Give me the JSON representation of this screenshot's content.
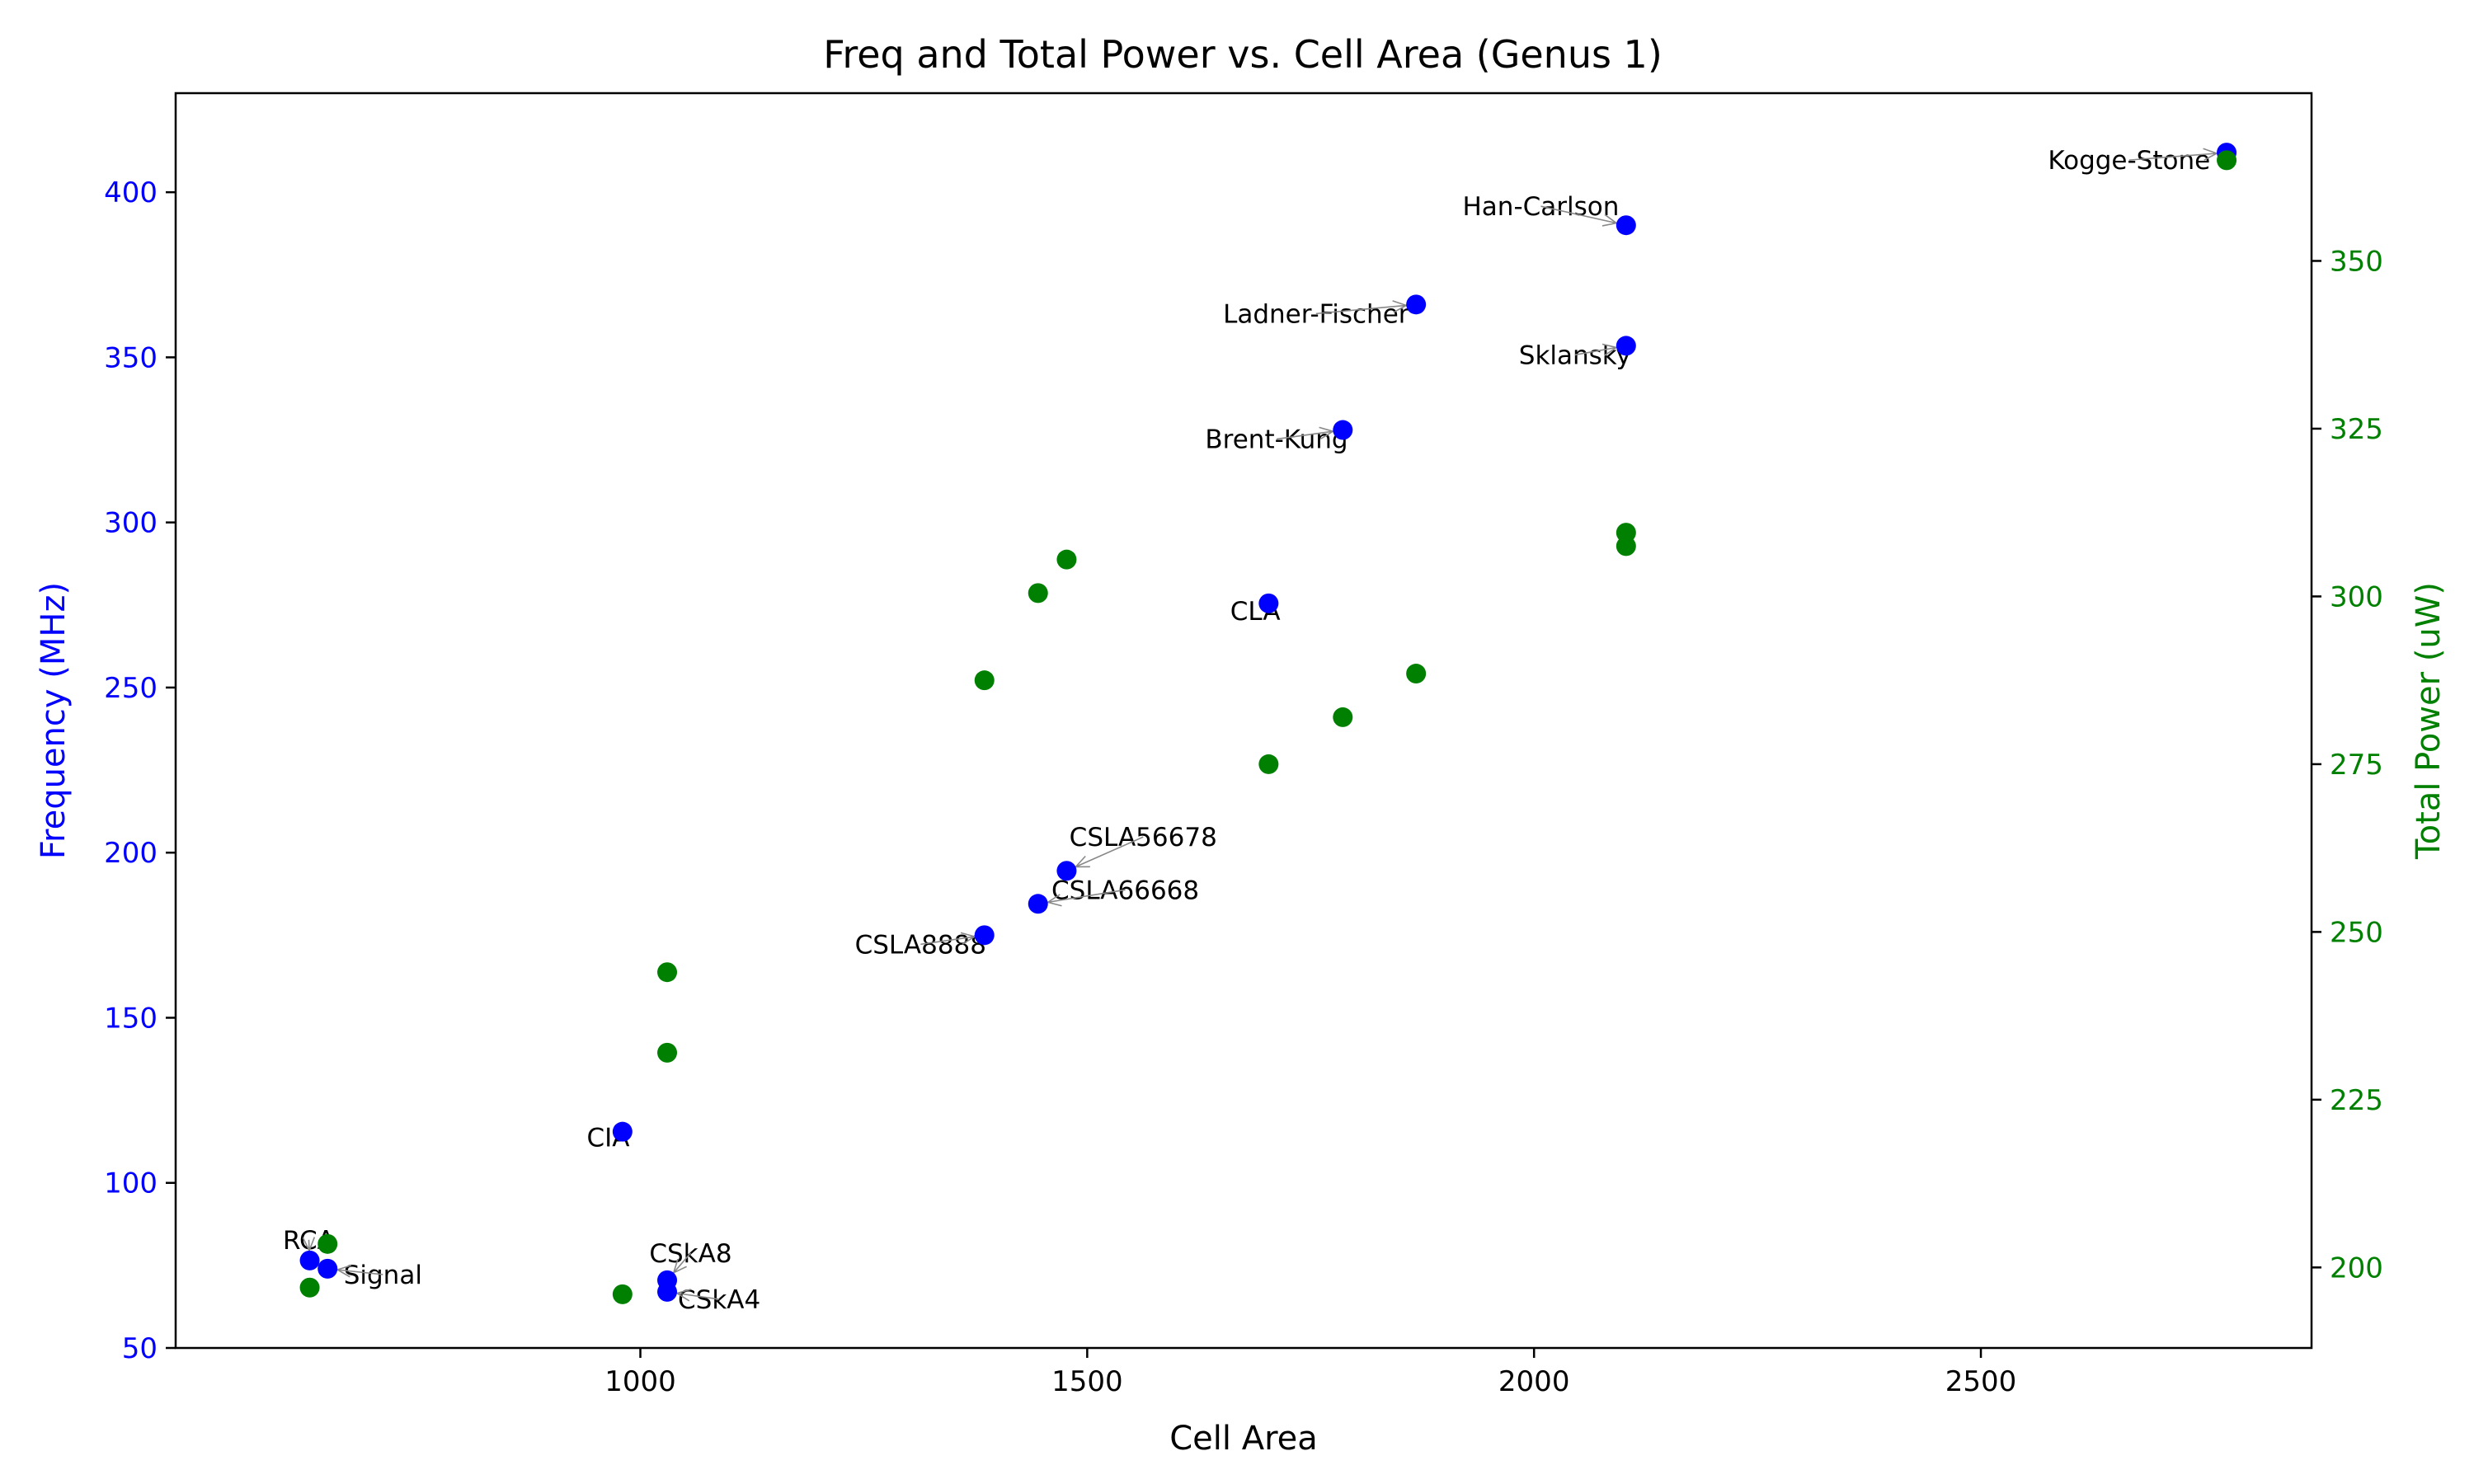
{
  "chart_data": {
    "type": "scatter",
    "title": "Freq and Total Power vs. Cell Area (Genus 1)",
    "xlabel": "Cell Area",
    "ylabel": "Frequency (MHz)",
    "y2label": "Total Power (uW)",
    "xlim": [
      480,
      2870
    ],
    "ylim": [
      50,
      430
    ],
    "y2lim": [
      188,
      375
    ],
    "xticks": [
      1000,
      1500,
      2000,
      2500
    ],
    "yticks": [
      50,
      100,
      150,
      200,
      250,
      300,
      350,
      400
    ],
    "y2ticks": [
      200,
      225,
      250,
      275,
      300,
      325,
      350
    ],
    "grid": false,
    "colors": {
      "frequency": "#0000ff",
      "power": "#008000",
      "text": "#000000",
      "arrow": "#888888"
    },
    "series": [
      {
        "axis": "left",
        "color": "#0000ff",
        "points": [
          {
            "x": 630,
            "y": 76.5
          },
          {
            "x": 650,
            "y": 74
          },
          {
            "x": 980,
            "y": 115.5
          },
          {
            "x": 1030,
            "y": 70.5
          },
          {
            "x": 1030,
            "y": 67
          },
          {
            "x": 1385,
            "y": 175
          },
          {
            "x": 1445,
            "y": 184.5
          },
          {
            "x": 1477,
            "y": 194.5
          },
          {
            "x": 1703,
            "y": 275.5
          },
          {
            "x": 1786,
            "y": 328
          },
          {
            "x": 1868,
            "y": 366
          },
          {
            "x": 2103,
            "y": 353.5
          },
          {
            "x": 2103,
            "y": 390
          },
          {
            "x": 2775,
            "y": 412
          }
        ]
      },
      {
        "axis": "right",
        "color": "#008000",
        "points": [
          {
            "x": 630,
            "y": 197
          },
          {
            "x": 650,
            "y": 203.5
          },
          {
            "x": 980,
            "y": 196
          },
          {
            "x": 1030,
            "y": 232
          },
          {
            "x": 1030,
            "y": 244
          },
          {
            "x": 1385,
            "y": 287.5
          },
          {
            "x": 1445,
            "y": 300.5
          },
          {
            "x": 1477,
            "y": 305.5
          },
          {
            "x": 1703,
            "y": 275
          },
          {
            "x": 1786,
            "y": 282
          },
          {
            "x": 1868,
            "y": 288.5
          },
          {
            "x": 2103,
            "y": 307.5
          },
          {
            "x": 2103,
            "y": 309.5
          },
          {
            "x": 2775,
            "y": 365
          }
        ]
      }
    ],
    "annotations": [
      {
        "text": "RCA",
        "axis": "left",
        "x": 630,
        "y": 76.5,
        "tx": 600,
        "ty": 80,
        "anchor": "start"
      },
      {
        "text": "Signal",
        "axis": "left",
        "x": 650,
        "y": 74,
        "tx": 668,
        "ty": 69.5,
        "anchor": "start"
      },
      {
        "text": "CIA",
        "axis": "left",
        "x": 980,
        "y": 115.5,
        "tx": 940,
        "ty": 111,
        "anchor": "start"
      },
      {
        "text": "CSkA8",
        "axis": "left",
        "x": 1030,
        "y": 70.5,
        "tx": 1010,
        "ty": 76,
        "anchor": "start"
      },
      {
        "text": "CSkA4",
        "axis": "left",
        "x": 1030,
        "y": 67,
        "tx": 1042,
        "ty": 62,
        "anchor": "start"
      },
      {
        "text": "CSLA8888",
        "axis": "left",
        "x": 1385,
        "y": 175,
        "tx": 1240,
        "ty": 169.5,
        "anchor": "start"
      },
      {
        "text": "CSLA66668",
        "axis": "left",
        "x": 1445,
        "y": 184.5,
        "tx": 1460,
        "ty": 186,
        "anchor": "start"
      },
      {
        "text": "CSLA56678",
        "axis": "left",
        "x": 1477,
        "y": 194.5,
        "tx": 1480,
        "ty": 202,
        "anchor": "start"
      },
      {
        "text": "CLA",
        "axis": "left",
        "x": 1703,
        "y": 275.5,
        "tx": 1660,
        "ty": 270.5,
        "anchor": "start"
      },
      {
        "text": "Brent-Kung",
        "axis": "left",
        "x": 1786,
        "y": 328,
        "tx": 1632,
        "ty": 322.5,
        "anchor": "start"
      },
      {
        "text": "Ladner-Fischer",
        "axis": "left",
        "x": 1868,
        "y": 366,
        "tx": 1652,
        "ty": 360.5,
        "anchor": "start"
      },
      {
        "text": "Sklansky",
        "axis": "left",
        "x": 2103,
        "y": 353.5,
        "tx": 1983,
        "ty": 348,
        "anchor": "start"
      },
      {
        "text": "Han-Carlson",
        "axis": "left",
        "x": 2103,
        "y": 390,
        "tx": 1920,
        "ty": 393,
        "anchor": "start"
      },
      {
        "text": "Kogge-Stone",
        "axis": "left",
        "x": 2775,
        "y": 412,
        "tx": 2575,
        "ty": 407,
        "anchor": "start"
      }
    ]
  }
}
